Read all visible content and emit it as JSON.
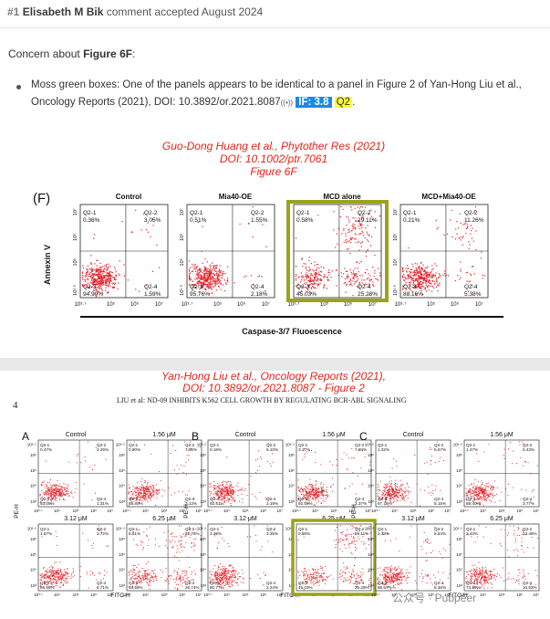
{
  "header": {
    "number": "#1",
    "author": "Elisabeth M Bik",
    "status": "comment accepted August 2024"
  },
  "comment": {
    "concern_prefix": "Concern about ",
    "concern_figure": "Figure 6F",
    "concern_suffix": ":",
    "bullet_text": "Moss green boxes: One of the panels appears to be identical to a panel in Figure 2 of Yan-Hong Liu et al., Oncology Reports (2021), DOI: 10.3892/or.2021.8087",
    "ext_icon": "((•))",
    "if_badge": "IF: 3.8",
    "quartile_badge": "Q2",
    "trailing": "."
  },
  "top_figure": {
    "caption_line1": "Guo-Dong Huang et al., Phytother Res (2021)",
    "caption_line2": "DOI: 10.1002/ptr.7061",
    "caption_line3": "Figure 6F",
    "panel_letter": "(F)",
    "y_axis_label": "Annexin V",
    "x_axis_label": "Caspase-3/7  Fluoescence",
    "highlight_color": "#9aa31c",
    "panels": [
      {
        "title": "Control",
        "q1": "Q2-1\n0.36%",
        "q2": "Q2-2\n3.05%",
        "q3": "Q2-3\n94.99%",
        "q4": "Q2-4\n1.59%",
        "q1a": "Q2-1",
        "q1b": "0.36%",
        "q2a": "Q2-2",
        "q2b": "3.05%",
        "q3a": "Q2-3",
        "q3b": "94.99%",
        "q4a": "Q2-4",
        "q4b": "1.59%"
      },
      {
        "title": "Mia40-OE",
        "q1a": "Q2-1",
        "q1b": "0.51%",
        "q2a": "Q2-2",
        "q2b": "1.55%",
        "q3a": "Q2-3",
        "q3b": "95.76%",
        "q4a": "Q2-4",
        "q4b": "2.18%"
      },
      {
        "title": "MCD alone",
        "q1a": "Q2-1",
        "q1b": "0.58%",
        "q2a": "Q2-2",
        "q2b": "29.11%",
        "q3a": "Q2-3",
        "q3b": "45.03%",
        "q4a": "Q2-4",
        "q4b": "25.28%"
      },
      {
        "title": "MCD+Mia40-OE",
        "q1a": "Q2-1",
        "q1b": "0.21%",
        "q2a": "Q2-2",
        "q2b": "11.26%",
        "q3a": "Q2-3",
        "q3b": "83.16%",
        "q4a": "Q2-4",
        "q4b": "5.38%"
      }
    ]
  },
  "bottom_figure": {
    "caption_line1": "Yan-Hong Liu et al., Oncology Reports (2021),",
    "caption_line2": "DOI: 10.3892/or.2021.8087 - Figure 2",
    "page_number": "4",
    "running_head": "LIU et al:  ND-09 INHIBITS K562 CELL GROWTH BY REGULATING BCR-ABL SIGNALING",
    "y_axis_label": "PE-H",
    "x_axis_label": "FITC-H",
    "groups": [
      {
        "letter": "A",
        "panels": [
          {
            "title": "Control",
            "q": [
              "0.47%",
              "4.26%",
              "93.09%",
              "1.31%"
            ]
          },
          {
            "title": "1.56 μM",
            "q": [
              "0.90%",
              "7.06%",
              "88.80%",
              "3.13%"
            ]
          },
          {
            "title": "3.12 μM",
            "q": [
              "1.67%",
              "3.72%",
              "86.99%",
              "6.71%"
            ]
          },
          {
            "title": "6.25 μM",
            "q": [
              "6.61%",
              "22.76%",
              "49.59%",
              "26.74%"
            ]
          }
        ]
      },
      {
        "letter": "B",
        "panels": [
          {
            "title": "Control",
            "q": [
              "0.19%",
              "5.10%",
              "92.51%",
              "2.19%"
            ]
          },
          {
            "title": "1.56 μM",
            "q": [
              "3.17%",
              "7.20%",
              "92.56%",
              "2.37%"
            ]
          },
          {
            "title": "3.12 μM",
            "q": [
              "3.20%",
              "3.35%",
              "90.77%",
              "2.24%"
            ]
          },
          {
            "title": "6.25 μM",
            "q": [
              "0.58%",
              "29.11%",
              "45.03%",
              "25.28%"
            ]
          }
        ]
      },
      {
        "letter": "C",
        "panels": [
          {
            "title": "Control",
            "q": [
              "1.32%",
              "5.67%",
              "87.76%",
              "5.15%"
            ]
          },
          {
            "title": "1.56 μM",
            "q": [
              "1.47%",
              "6.43%",
              "88.40%",
              "3.77%"
            ]
          },
          {
            "title": "3.12 μM",
            "q": [
              "2.33%",
              "8.64%",
              "86.57%",
              "8.46%"
            ]
          },
          {
            "title": "6.25 μM",
            "q": [
              "2.43%",
              "13.46%",
              "73.99%",
              "10.93%"
            ]
          }
        ]
      }
    ]
  },
  "watermark": "公众号 · Pubpeer"
}
